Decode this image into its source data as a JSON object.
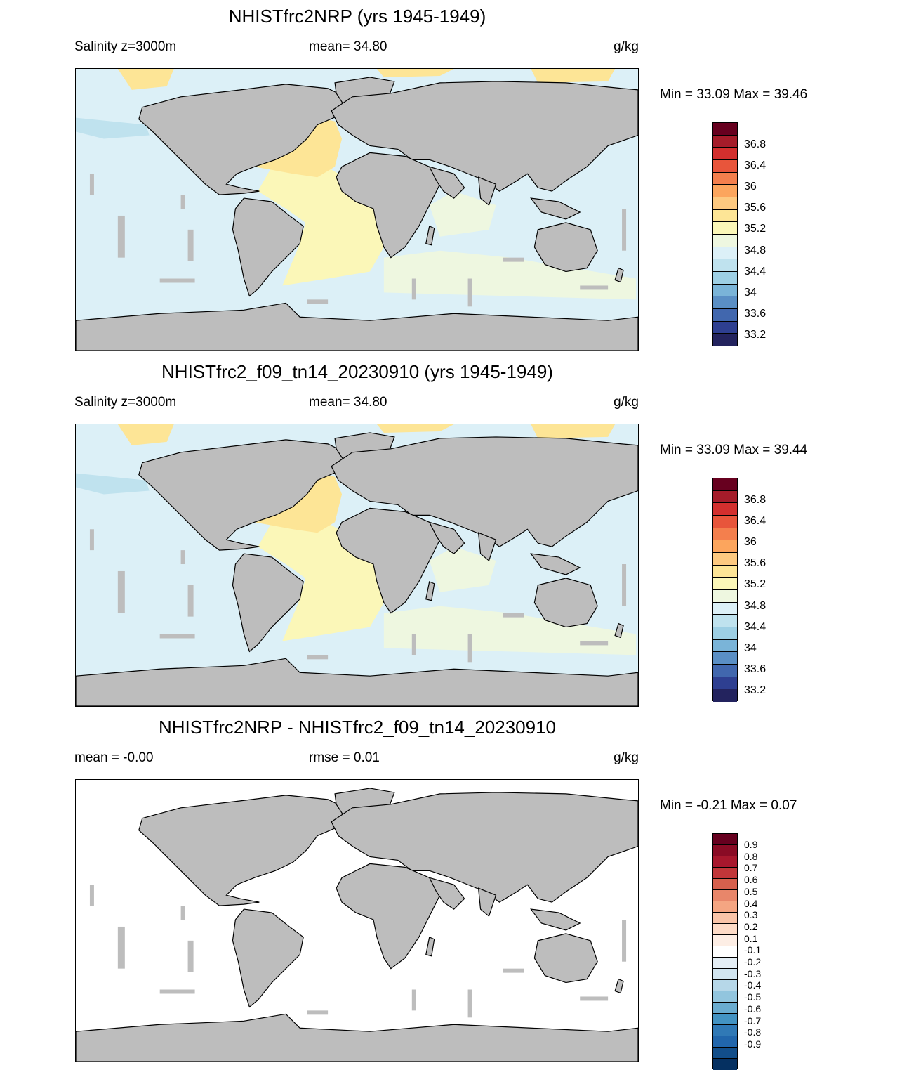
{
  "panels": [
    {
      "title": "NHISTfrc2NRP (yrs 1945-1949)",
      "left_label": "Salinity z=3000m",
      "mid_label": "mean=  34.80",
      "units": "g/kg",
      "minmax": "Min =  33.09 Max =  39.46",
      "colorbar": {
        "colors": [
          "#67001f",
          "#a51c2a",
          "#d32f2e",
          "#e8553b",
          "#f47f4d",
          "#fca55d",
          "#fdc980",
          "#fde596",
          "#fbf7b8",
          "#eef7e0",
          "#dcf0f7",
          "#bfe2ee",
          "#9dcfe4",
          "#7ab4d8",
          "#5a8fc5",
          "#4167ae",
          "#2e3f91",
          "#23235e"
        ],
        "tick_labels": [
          "36.8",
          "36.4",
          "36",
          "35.6",
          "35.2",
          "34.8",
          "34.4",
          "34",
          "33.6",
          "33.2"
        ]
      }
    },
    {
      "title": "NHISTfrc2_f09_tn14_20230910 (yrs 1945-1949)",
      "left_label": "Salinity z=3000m",
      "mid_label": "mean=  34.80",
      "units": "g/kg",
      "minmax": "Min =  33.09 Max =  39.44",
      "colorbar": {
        "colors": [
          "#67001f",
          "#a51c2a",
          "#d32f2e",
          "#e8553b",
          "#f47f4d",
          "#fca55d",
          "#fdc980",
          "#fde596",
          "#fbf7b8",
          "#eef7e0",
          "#dcf0f7",
          "#bfe2ee",
          "#9dcfe4",
          "#7ab4d8",
          "#5a8fc5",
          "#4167ae",
          "#2e3f91",
          "#23235e"
        ],
        "tick_labels": [
          "36.8",
          "36.4",
          "36",
          "35.6",
          "35.2",
          "34.8",
          "34.4",
          "34",
          "33.6",
          "33.2"
        ]
      }
    },
    {
      "title": "NHISTfrc2NRP - NHISTfrc2_f09_tn14_20230910",
      "left_label": "mean =  -0.00",
      "mid_label": "rmse =   0.01",
      "units": "g/kg",
      "minmax": "Min =  -0.21 Max =   0.07",
      "colorbar": {
        "colors": [
          "#67001f",
          "#8a0b25",
          "#a8172d",
          "#c13639",
          "#d6604d",
          "#e8866a",
          "#f4a582",
          "#f9c4a8",
          "#fddbc7",
          "#fdeee5",
          "#ffffff",
          "#e4eef5",
          "#d1e5f0",
          "#b6d7e8",
          "#92c5de",
          "#6aacd0",
          "#4393c3",
          "#3079b6",
          "#2166ac",
          "#124e8a",
          "#053061"
        ],
        "tick_labels": [
          "0.9",
          "0.8",
          "0.7",
          "0.6",
          "0.5",
          "0.4",
          "0.3",
          "0.2",
          "0.1",
          "-0.1",
          "-0.2",
          "-0.3",
          "-0.4",
          "-0.5",
          "-0.6",
          "-0.7",
          "-0.8",
          "-0.9"
        ]
      }
    }
  ],
  "map_colors": {
    "land": "#bdbdbd",
    "ocean_fresh": "#dcf0f7",
    "ocean_mid": "#eef7e0",
    "ocean_salty": "#fbf7b8",
    "ocean_saltier": "#fde596",
    "ocean_north": "#bfe2ee",
    "diff_ocean": "#ffffff",
    "coast": "#000000"
  }
}
